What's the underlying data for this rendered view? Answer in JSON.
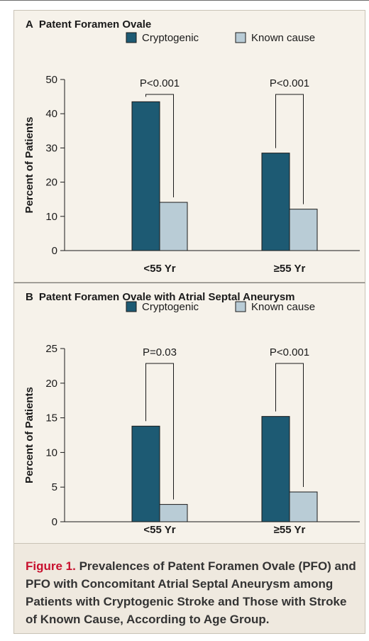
{
  "figure": {
    "label": "Figure 1.",
    "caption": "Prevalences of Patent Foramen Ovale (PFO) and PFO with Concomitant Atrial Septal Aneurysm among Patients with Cryptogenic Stroke and Those with Stroke of Known Cause, According to Age Group."
  },
  "colors": {
    "cryptogenic": "#1d5a73",
    "known_cause": "#b9ccd6",
    "panel_bg": "#f6f2ea"
  },
  "chart_data": [
    {
      "type": "bar",
      "panel_letter": "A",
      "title": "Patent Foramen Ovale",
      "ylabel": "Percent of Patients",
      "xlabel": "",
      "ylim": [
        0,
        50
      ],
      "yticks": [
        0,
        10,
        20,
        30,
        40,
        50
      ],
      "grid": false,
      "legend_position": "top-right",
      "categories": [
        "<55 Yr",
        "≥55 Yr"
      ],
      "series": [
        {
          "name": "Cryptogenic",
          "color": "#1d5a73",
          "values": [
            43.5,
            28.5
          ]
        },
        {
          "name": "Known cause",
          "color": "#b9ccd6",
          "values": [
            14.1,
            12.1
          ]
        }
      ],
      "annotations": [
        "P<0.001",
        "P<0.001"
      ]
    },
    {
      "type": "bar",
      "panel_letter": "B",
      "title": "Patent Foramen Ovale with Atrial Septal Aneurysm",
      "ylabel": "Percent of Patients",
      "xlabel": "",
      "ylim": [
        0,
        25
      ],
      "yticks": [
        0,
        5,
        10,
        15,
        20,
        25
      ],
      "grid": false,
      "legend_position": "top-right",
      "categories": [
        "<55 Yr",
        "≥55 Yr"
      ],
      "series": [
        {
          "name": "Cryptogenic",
          "color": "#1d5a73",
          "values": [
            13.8,
            15.2
          ]
        },
        {
          "name": "Known cause",
          "color": "#b9ccd6",
          "values": [
            2.5,
            4.3
          ]
        }
      ],
      "annotations": [
        "P=0.03",
        "P<0.001"
      ]
    }
  ]
}
